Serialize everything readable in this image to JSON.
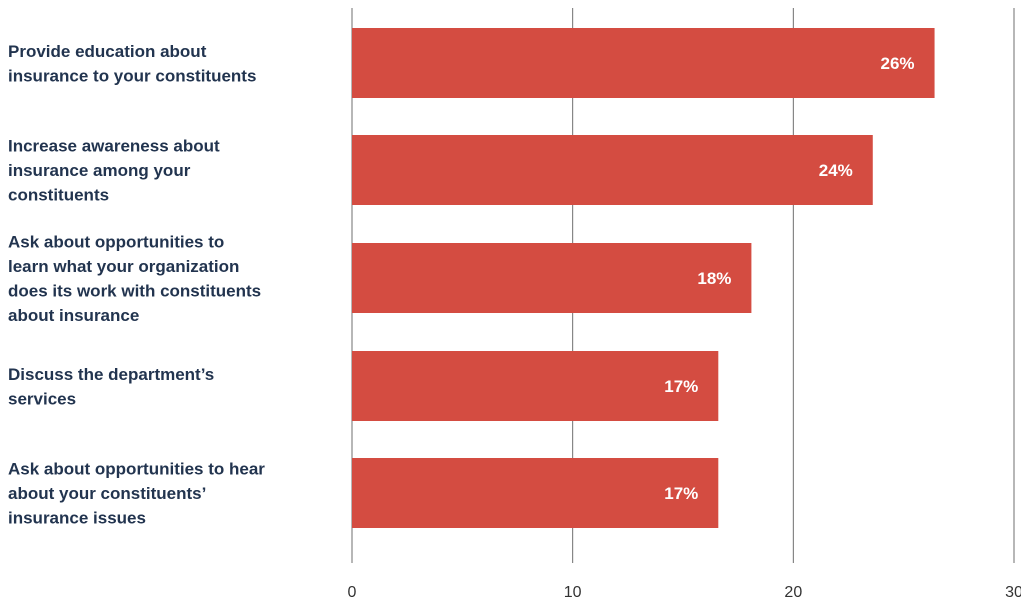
{
  "chart_data": {
    "type": "bar",
    "orientation": "horizontal",
    "categories": [
      [
        "Provide education about",
        "insurance to your constituents"
      ],
      [
        "Increase awareness about",
        "insurance among your",
        "constituents"
      ],
      [
        "Ask about opportunities to",
        "learn what your organization",
        "does its work with constituents",
        "about insurance"
      ],
      [
        "Discuss the department’s",
        "services"
      ],
      [
        "Ask about opportunities to hear",
        "about your constituents’",
        "insurance issues"
      ]
    ],
    "values": [
      26.4,
      23.6,
      18.1,
      16.6,
      16.6
    ],
    "value_labels": [
      "26%",
      "24%",
      "18%",
      "17%",
      "17%"
    ],
    "xticks": [
      "0",
      "10",
      "20",
      "30"
    ],
    "xlim": [
      0,
      30
    ],
    "grid": true,
    "bar_color": "#d44c41",
    "label_color": "#22344f"
  }
}
